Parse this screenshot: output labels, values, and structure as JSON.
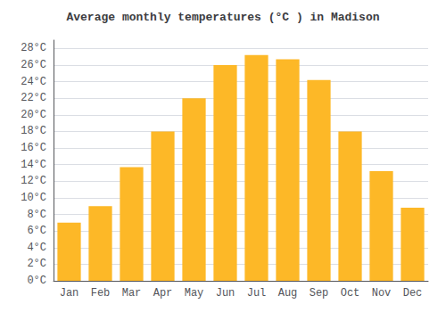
{
  "chart_data": {
    "type": "bar",
    "title": "Average monthly temperatures (°C ) in Madison",
    "categories": [
      "Jan",
      "Feb",
      "Mar",
      "Apr",
      "May",
      "Jun",
      "Jul",
      "Aug",
      "Sep",
      "Oct",
      "Nov",
      "Dec"
    ],
    "values": [
      7.0,
      9.0,
      13.7,
      18.0,
      22.0,
      26.0,
      27.2,
      26.7,
      24.2,
      18.0,
      13.2,
      8.8
    ],
    "color": "#FDB827",
    "ylim": [
      0,
      29
    ],
    "yticks": [
      {
        "value": 0,
        "label": "0°C"
      },
      {
        "value": 2,
        "label": "2°C"
      },
      {
        "value": 4,
        "label": "4°C"
      },
      {
        "value": 6,
        "label": "6°C"
      },
      {
        "value": 8,
        "label": "8°C"
      },
      {
        "value": 10,
        "label": "10°C"
      },
      {
        "value": 12,
        "label": "12°C"
      },
      {
        "value": 14,
        "label": "14°C"
      },
      {
        "value": 16,
        "label": "16°C"
      },
      {
        "value": 18,
        "label": "18°C"
      },
      {
        "value": 20,
        "label": "20°C"
      },
      {
        "value": 22,
        "label": "22°C"
      },
      {
        "value": 24,
        "label": "24°C"
      },
      {
        "value": 26,
        "label": "26°C"
      },
      {
        "value": 28,
        "label": "28°C"
      }
    ],
    "grid": true
  }
}
